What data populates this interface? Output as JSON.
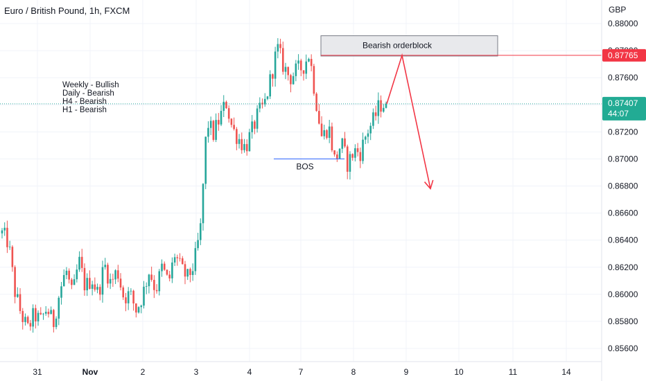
{
  "header": {
    "title": "Euro / British Pound, 1h, FXCM"
  },
  "annotations": {
    "bias_lines": [
      "Weekly - Bullish",
      "Daily - Bearish",
      "H4 - Bearish",
      "H1 - Bearish"
    ],
    "orderblock_label": "Bearish orderblock",
    "bos_label": "BOS"
  },
  "price_scale": {
    "currency": "GBP",
    "ticks": [
      "0.88000",
      "0.87800",
      "0.87600",
      "0.87400",
      "0.87200",
      "0.87000",
      "0.86800",
      "0.86600",
      "0.86400",
      "0.86200",
      "0.86000",
      "0.85800",
      "0.85600"
    ],
    "labels": [
      {
        "text": "0.87765",
        "color": "#f23645"
      },
      {
        "text": "0.87407",
        "color": "#22ab94",
        "countdown": "44:07"
      }
    ]
  },
  "time_scale": {
    "ticks": [
      "31",
      "Nov",
      "2",
      "3",
      "4",
      "7",
      "8",
      "9",
      "10",
      "11",
      "14"
    ]
  },
  "colors": {
    "up": "#26a69a",
    "down": "#ef5350",
    "red_line": "#f23645",
    "bos_line": "#2962ff",
    "ob_fill": "#e8e9ec",
    "ob_border": "#787b86"
  },
  "chart_data": {
    "type": "candlestick",
    "title": "Euro / British Pound, 1h, FXCM",
    "ylim": [
      0.8552,
      0.8822
    ],
    "y_unit": "GBP",
    "x_ticks": [
      "31",
      "Nov",
      "2",
      "3",
      "4",
      "7",
      "8",
      "9",
      "10",
      "11",
      "14"
    ],
    "current_price": 0.87407,
    "level_line": 0.87765,
    "bearish_orderblock": {
      "top": 0.8791,
      "bottom": 0.8776,
      "label": "Bearish orderblock"
    },
    "bos": {
      "price": 0.87,
      "label": "BOS"
    },
    "projection": [
      0.87407,
      0.87765,
      0.8678
    ],
    "close_path": [
      0.8645,
      0.8638,
      0.8602,
      0.8585,
      0.8574,
      0.8585,
      0.858,
      0.859,
      0.8578,
      0.8602,
      0.8618,
      0.8598,
      0.8625,
      0.8605,
      0.8612,
      0.86,
      0.8622,
      0.8608,
      0.8618,
      0.8598,
      0.86,
      0.8588,
      0.86,
      0.8618,
      0.8603,
      0.862,
      0.8608,
      0.863,
      0.8618,
      0.8612,
      0.8622,
      0.8648,
      0.8728,
      0.8718,
      0.873,
      0.8742,
      0.8722,
      0.8715,
      0.8708,
      0.872,
      0.8733,
      0.874,
      0.876,
      0.8782,
      0.8768,
      0.876,
      0.8765,
      0.8768,
      0.8778,
      0.8745,
      0.8715,
      0.8725,
      0.8698,
      0.8712,
      0.8696,
      0.8706,
      0.8705,
      0.872,
      0.8728,
      0.874,
      0.8741
    ]
  }
}
